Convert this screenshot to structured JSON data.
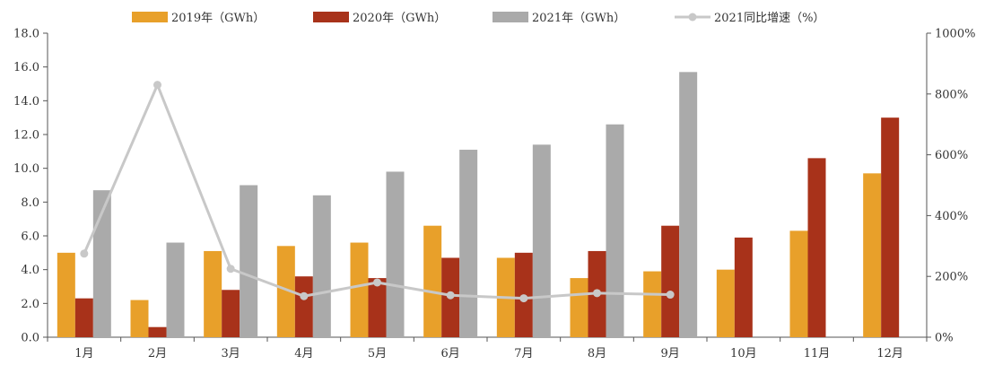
{
  "chart_data": {
    "type": "bar",
    "categories": [
      "1月",
      "2月",
      "3月",
      "4月",
      "5月",
      "6月",
      "7月",
      "8月",
      "9月",
      "10月",
      "11月",
      "12月"
    ],
    "series": [
      {
        "name": "2019年（GWh）",
        "type": "bar",
        "axis": "left",
        "color": "#E8A02A",
        "values": [
          5.0,
          2.2,
          5.1,
          5.4,
          5.6,
          6.6,
          4.7,
          3.5,
          3.9,
          4.0,
          6.3,
          9.7
        ]
      },
      {
        "name": "2020年（GWh）",
        "type": "bar",
        "axis": "left",
        "color": "#A8321A",
        "values": [
          2.3,
          0.6,
          2.8,
          3.6,
          3.5,
          4.7,
          5.0,
          5.1,
          6.6,
          5.9,
          10.6,
          13.0
        ]
      },
      {
        "name": "2021年（GWh）",
        "type": "bar",
        "axis": "left",
        "color": "#AAAAAA",
        "values": [
          8.7,
          5.6,
          9.0,
          8.4,
          9.8,
          11.1,
          11.4,
          12.6,
          15.7,
          null,
          null,
          null
        ]
      },
      {
        "name": "2021同比增速（%）",
        "type": "line",
        "axis": "right",
        "color": "#C8C8C8",
        "values": [
          275,
          830,
          225,
          135,
          180,
          138,
          128,
          145,
          140,
          null,
          null,
          null
        ]
      }
    ],
    "y_left": {
      "min": 0,
      "max": 18,
      "step": 2,
      "tick_labels": [
        "0.0",
        "2.0",
        "4.0",
        "6.0",
        "8.0",
        "10.0",
        "12.0",
        "14.0",
        "16.0",
        "18.0"
      ]
    },
    "y_right": {
      "min": 0,
      "max": 1000,
      "step": 200,
      "tick_labels": [
        "0%",
        "200%",
        "400%",
        "600%",
        "800%",
        "1000%"
      ]
    },
    "legend_position": "top",
    "grid": false
  }
}
